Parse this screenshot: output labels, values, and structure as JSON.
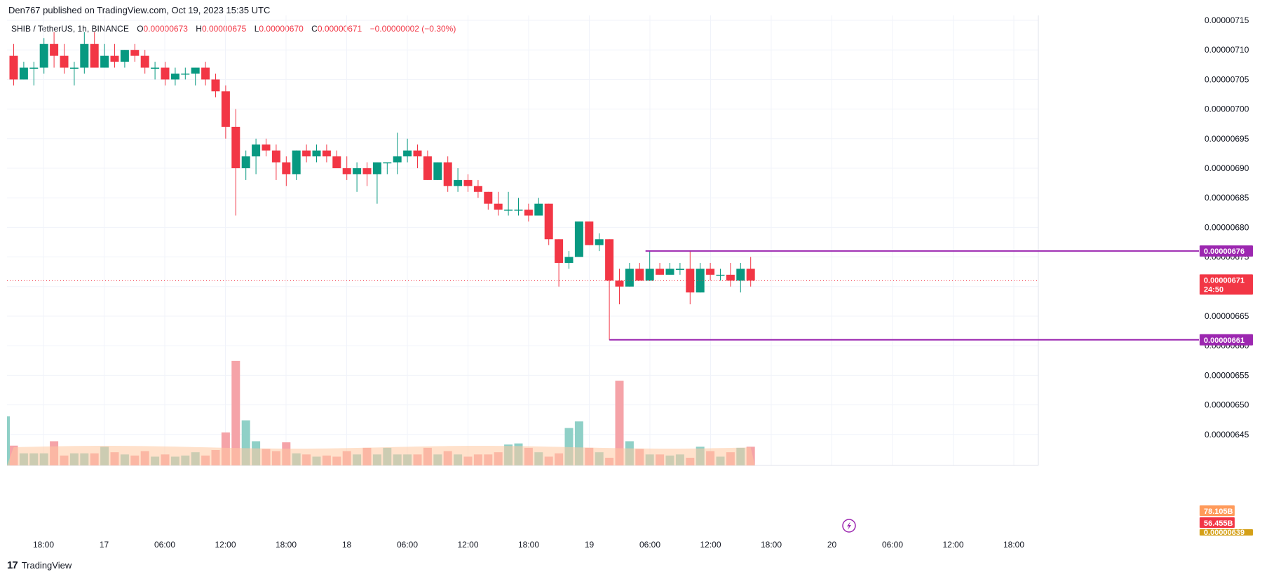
{
  "header": {
    "published": "Den767 published on TradingView.com, Oct 19, 2023 15:35 UTC",
    "symbol": "SHIB / TetherUS, 1h, BINANCE",
    "o_label": "O",
    "o_value": "0.00000673",
    "h_label": "H",
    "h_value": "0.00000675",
    "l_label": "L",
    "l_value": "0.00000670",
    "c_label": "C",
    "c_value": "0.00000671",
    "change": "−0.00000002 (−0.30%)"
  },
  "footer": {
    "brand": "TradingView",
    "logo_mark": "17"
  },
  "colors": {
    "up": "#089981",
    "down": "#f23645",
    "vol_up": "#8fd0c7",
    "vol_down": "#f5a3a8",
    "ma_fill": "#ffc9a0",
    "ma_line": "#ff9a5a",
    "level": "#9c27b0",
    "grid": "#f0f3fa"
  },
  "chart_data": {
    "type": "candlestick",
    "title": "SHIB / TetherUS, 1h, BINANCE",
    "ylim": [
      6.41e-06,
      7.16e-06
    ],
    "y_ticks": [
      "0.00000715",
      "0.00000710",
      "0.00000705",
      "0.00000700",
      "0.00000695",
      "0.00000690",
      "0.00000685",
      "0.00000680",
      "0.00000675",
      "0.00000670",
      "0.00000665",
      "0.00000660",
      "0.00000655",
      "0.00000650",
      "0.00000645"
    ],
    "x_ticks": [
      "18:00",
      "17",
      "06:00",
      "12:00",
      "18:00",
      "18",
      "06:00",
      "12:00",
      "18:00",
      "19",
      "06:00",
      "12:00",
      "18:00",
      "20",
      "06:00",
      "12:00",
      "18:00"
    ],
    "bar_unit_hours": 1,
    "candles": [
      [
        709,
        711,
        704,
        705
      ],
      [
        705,
        708,
        705,
        707
      ],
      [
        707,
        708,
        704,
        707
      ],
      [
        707,
        712,
        706,
        711
      ],
      [
        711,
        713,
        707,
        709
      ],
      [
        709,
        711,
        706,
        707
      ],
      [
        707,
        708,
        704,
        707
      ],
      [
        707,
        713,
        706,
        711
      ],
      [
        711,
        713,
        707,
        707
      ],
      [
        707,
        711,
        707,
        709
      ],
      [
        709,
        711,
        707,
        708
      ],
      [
        708,
        710,
        707,
        710
      ],
      [
        710,
        711,
        708,
        709
      ],
      [
        709,
        710,
        706,
        707
      ],
      [
        707,
        708,
        705,
        707
      ],
      [
        707,
        708,
        704,
        705
      ],
      [
        705,
        707,
        704,
        706
      ],
      [
        706,
        707,
        705,
        706
      ],
      [
        706,
        707,
        704,
        707
      ],
      [
        707,
        708,
        704,
        705
      ],
      [
        705,
        706,
        702,
        703
      ],
      [
        703,
        704,
        695,
        697
      ],
      [
        697,
        700,
        682,
        690
      ],
      [
        690,
        693,
        688,
        692
      ],
      [
        692,
        695,
        689,
        694
      ],
      [
        694,
        695,
        692,
        693
      ],
      [
        693,
        694,
        688,
        691
      ],
      [
        691,
        692,
        687,
        689
      ],
      [
        689,
        693,
        688,
        693
      ],
      [
        693,
        694,
        691,
        692
      ],
      [
        692,
        694,
        691,
        693
      ],
      [
        693,
        694,
        691,
        692
      ],
      [
        692,
        693,
        690,
        690
      ],
      [
        690,
        692,
        688,
        689
      ],
      [
        689,
        691,
        686,
        690
      ],
      [
        690,
        691,
        687,
        689
      ],
      [
        689,
        691,
        684,
        691
      ],
      [
        691,
        691,
        689,
        691
      ],
      [
        691,
        696,
        689,
        692
      ],
      [
        692,
        695,
        691,
        693
      ],
      [
        693,
        694,
        690,
        692
      ],
      [
        692,
        693,
        688,
        688
      ],
      [
        688,
        691,
        688,
        691
      ],
      [
        691,
        692,
        686,
        687
      ],
      [
        687,
        690,
        686,
        688
      ],
      [
        688,
        689,
        686,
        687
      ],
      [
        687,
        688,
        685,
        686
      ],
      [
        686,
        686,
        683,
        684
      ],
      [
        684,
        686,
        682,
        683
      ],
      [
        683,
        686,
        682,
        683
      ],
      [
        683,
        685,
        682,
        683
      ],
      [
        683,
        684,
        681,
        682
      ],
      [
        682,
        685,
        682,
        684
      ],
      [
        684,
        684,
        677,
        678
      ],
      [
        678,
        678,
        670,
        674
      ],
      [
        674,
        676,
        673,
        675
      ],
      [
        675,
        681,
        675,
        681
      ],
      [
        681,
        681,
        677,
        677
      ],
      [
        677,
        679,
        676,
        678
      ],
      [
        678,
        678,
        661,
        671
      ],
      [
        671,
        673,
        667,
        670
      ],
      [
        670,
        674,
        670,
        673
      ],
      [
        673,
        674,
        671,
        671
      ],
      [
        671,
        676,
        671,
        673
      ],
      [
        673,
        674,
        672,
        672
      ],
      [
        672,
        674,
        672,
        673
      ],
      [
        673,
        674,
        672,
        673
      ],
      [
        673,
        676,
        667,
        669
      ],
      [
        669,
        674,
        669,
        673
      ],
      [
        673,
        674,
        671,
        672
      ],
      [
        672,
        673,
        671,
        672
      ],
      [
        672,
        674,
        670,
        671
      ],
      [
        671,
        674,
        669,
        673
      ],
      [
        673,
        675,
        670,
        671
      ]
    ],
    "volume_label_values": [
      "78.105B",
      "56.455B",
      "0.00000639"
    ],
    "horizontal_levels": [
      6.76e-06,
      6.61e-06
    ],
    "last_price": "0.00000671",
    "countdown": "24:50",
    "level_labels": [
      "0.00000676",
      "0.00000661"
    ]
  }
}
